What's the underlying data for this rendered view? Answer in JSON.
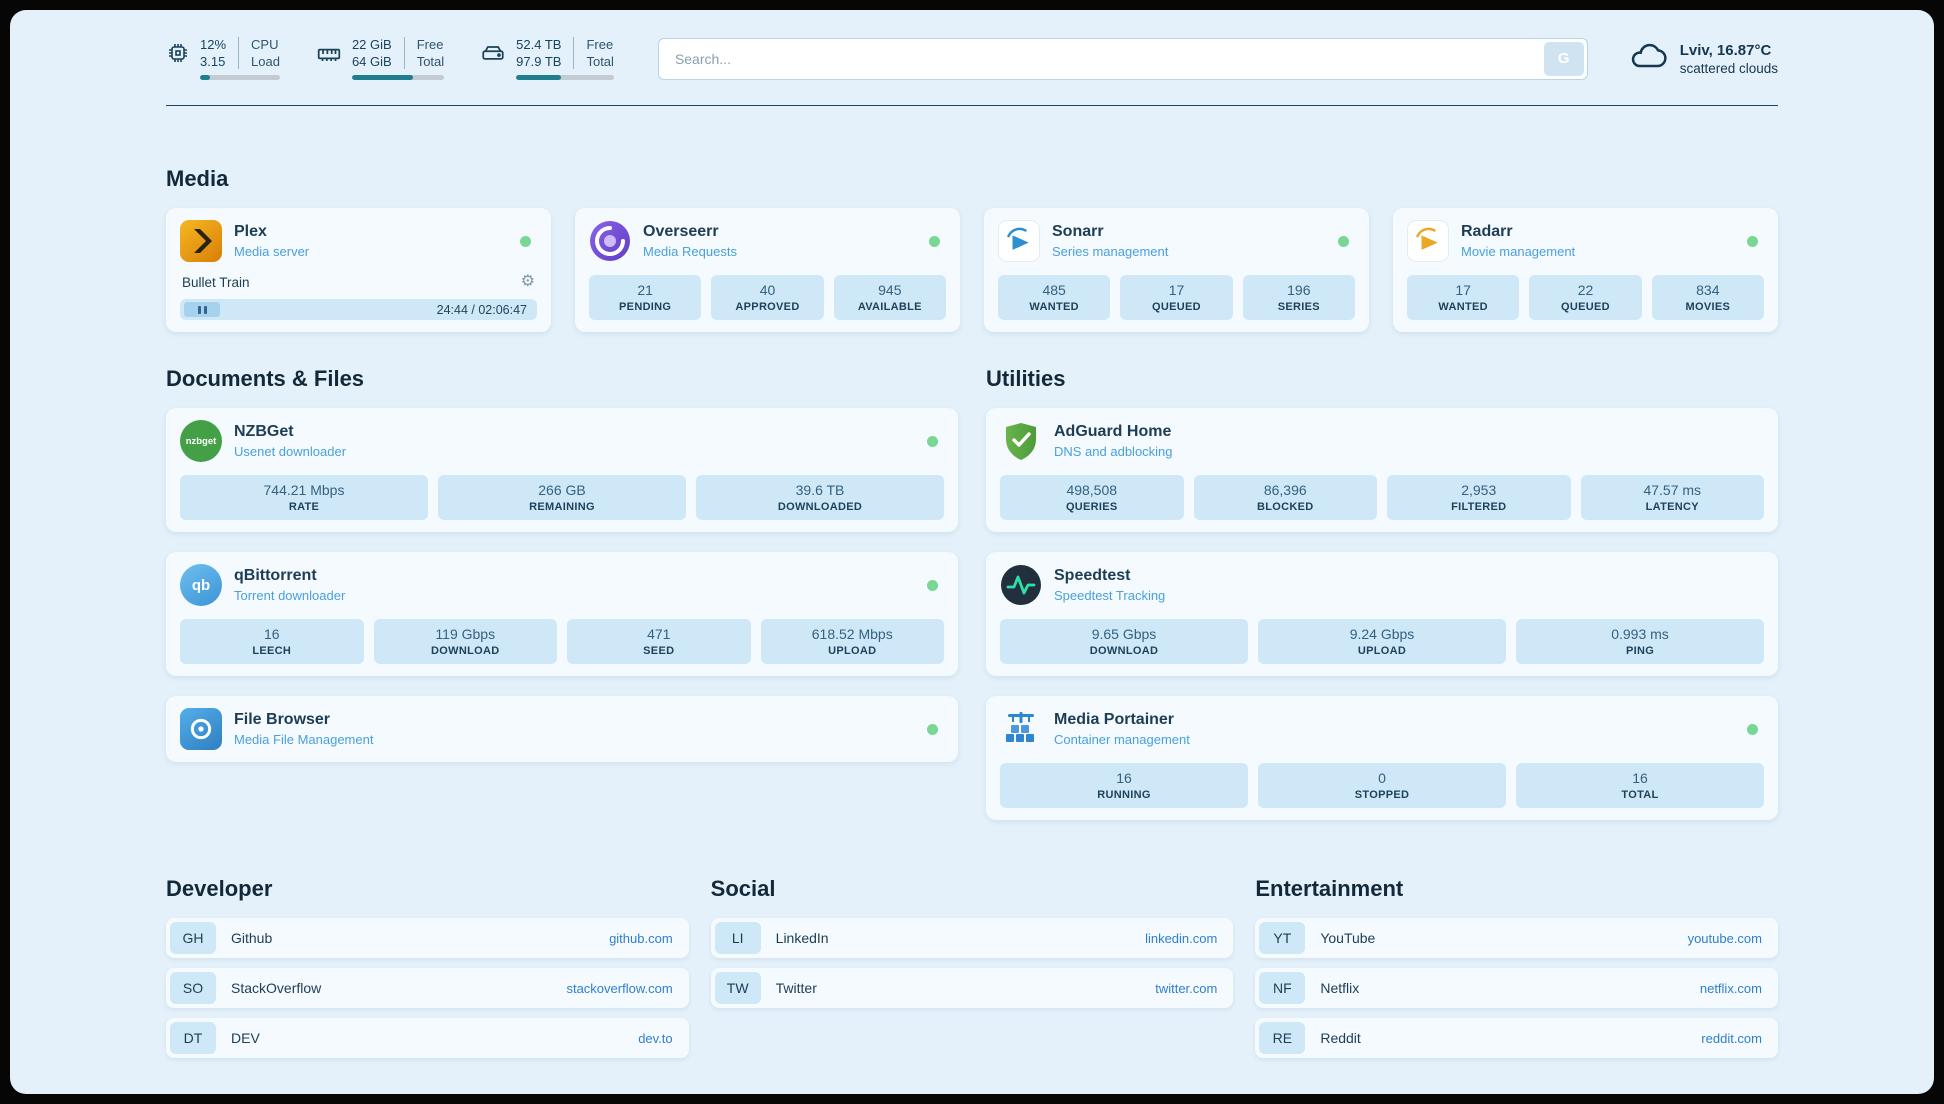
{
  "topbar": {
    "cpu": {
      "icon": "cpu-chip-icon",
      "percent": "12%",
      "load": "3.15",
      "label_top": "CPU",
      "label_bottom": "Load",
      "bar_percent": 12
    },
    "ram": {
      "icon": "ram-icon",
      "free": "22 GiB",
      "total": "64 GiB",
      "label_top": "Free",
      "label_bottom": "Total",
      "bar_percent": 66
    },
    "disk": {
      "icon": "hard-drive-icon",
      "free": "52.4 TB",
      "total": "97.9 TB",
      "label_top": "Free",
      "label_bottom": "Total",
      "bar_percent": 46
    },
    "search": {
      "placeholder": "Search...",
      "button_label": "G"
    },
    "weather": {
      "icon": "cloud-icon",
      "location": "Lviv, 16.87°C",
      "condition": "scattered clouds"
    }
  },
  "sections": {
    "media": "Media",
    "documents": "Documents & Files",
    "utilities": "Utilities"
  },
  "media_cards": [
    {
      "name": "Plex",
      "subtitle": "Media server",
      "icon": "plex-icon",
      "online": true,
      "now_playing": "Bullet Train",
      "time": "24:44 / 02:06:47",
      "progress_percent": 19
    },
    {
      "name": "Overseerr",
      "subtitle": "Media Requests",
      "icon": "overseerr-icon",
      "online": true,
      "stats": [
        {
          "value": "21",
          "label": "PENDING"
        },
        {
          "value": "40",
          "label": "APPROVED"
        },
        {
          "value": "945",
          "label": "AVAILABLE"
        }
      ]
    },
    {
      "name": "Sonarr",
      "subtitle": "Series management",
      "icon": "sonarr-icon",
      "online": true,
      "stats": [
        {
          "value": "485",
          "label": "WANTED"
        },
        {
          "value": "17",
          "label": "QUEUED"
        },
        {
          "value": "196",
          "label": "SERIES"
        }
      ]
    },
    {
      "name": "Radarr",
      "subtitle": "Movie management",
      "icon": "radarr-icon",
      "online": true,
      "stats": [
        {
          "value": "17",
          "label": "WANTED"
        },
        {
          "value": "22",
          "label": "QUEUED"
        },
        {
          "value": "834",
          "label": "MOVIES"
        }
      ]
    }
  ],
  "documents_cards": [
    {
      "name": "NZBGet",
      "subtitle": "Usenet downloader",
      "icon": "nzbget-icon",
      "icon_text": "nzbget",
      "online": true,
      "stats": [
        {
          "value": "744.21 Mbps",
          "label": "RATE"
        },
        {
          "value": "266 GB",
          "label": "REMAINING"
        },
        {
          "value": "39.6 TB",
          "label": "DOWNLOADED"
        }
      ]
    },
    {
      "name": "qBittorrent",
      "subtitle": "Torrent downloader",
      "icon": "qbittorrent-icon",
      "icon_text": "qb",
      "online": true,
      "stats": [
        {
          "value": "16",
          "label": "LEECH"
        },
        {
          "value": "119 Gbps",
          "label": "DOWNLOAD"
        },
        {
          "value": "471",
          "label": "SEED"
        },
        {
          "value": "618.52 Mbps",
          "label": "UPLOAD"
        }
      ]
    },
    {
      "name": "File Browser",
      "subtitle": "Media File Management",
      "icon": "filebrowser-icon",
      "online": true,
      "stats": []
    }
  ],
  "utilities_cards": [
    {
      "name": "AdGuard Home",
      "subtitle": "DNS and adblocking",
      "icon": "adguard-shield-icon",
      "online": false,
      "stats": [
        {
          "value": "498,508",
          "label": "QUERIES"
        },
        {
          "value": "86,396",
          "label": "BLOCKED"
        },
        {
          "value": "2,953",
          "label": "FILTERED"
        },
        {
          "value": "47.57 ms",
          "label": "LATENCY"
        }
      ]
    },
    {
      "name": "Speedtest",
      "subtitle": "Speedtest Tracking",
      "icon": "speedtest-icon",
      "online": false,
      "stats": [
        {
          "value": "9.65 Gbps",
          "label": "DOWNLOAD"
        },
        {
          "value": "9.24 Gbps",
          "label": "UPLOAD"
        },
        {
          "value": "0.993 ms",
          "label": "PING"
        }
      ]
    },
    {
      "name": "Media Portainer",
      "subtitle": "Container management",
      "icon": "portainer-crane-icon",
      "online": true,
      "stats": [
        {
          "value": "16",
          "label": "RUNNING"
        },
        {
          "value": "0",
          "label": "STOPPED"
        },
        {
          "value": "16",
          "label": "TOTAL"
        }
      ]
    }
  ],
  "bookmarks": {
    "developer": {
      "title": "Developer",
      "items": [
        {
          "abbr": "GH",
          "name": "Github",
          "url": "github.com"
        },
        {
          "abbr": "SO",
          "name": "StackOverflow",
          "url": "stackoverflow.com"
        },
        {
          "abbr": "DT",
          "name": "DEV",
          "url": "dev.to"
        }
      ]
    },
    "social": {
      "title": "Social",
      "items": [
        {
          "abbr": "LI",
          "name": "LinkedIn",
          "url": "linkedin.com"
        },
        {
          "abbr": "TW",
          "name": "Twitter",
          "url": "twitter.com"
        }
      ]
    },
    "entertainment": {
      "title": "Entertainment",
      "items": [
        {
          "abbr": "YT",
          "name": "YouTube",
          "url": "youtube.com"
        },
        {
          "abbr": "NF",
          "name": "Netflix",
          "url": "netflix.com"
        },
        {
          "abbr": "RE",
          "name": "Reddit",
          "url": "reddit.com"
        }
      ]
    }
  },
  "colors": {
    "accent_blue": "#2f86c9",
    "subtitle_blue": "#4aa0dc",
    "status_online": "#79d795",
    "stat_bg": "#cfe8f8",
    "bar_fill": "#1f7f8e",
    "page_bg": "#e4f1fa"
  }
}
